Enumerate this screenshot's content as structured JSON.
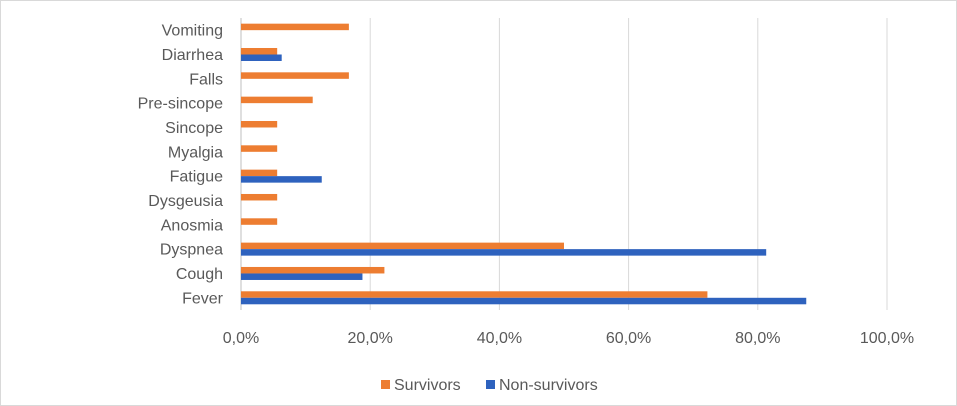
{
  "chart_data": {
    "type": "bar",
    "orientation": "horizontal",
    "title": "",
    "xlabel": "",
    "ylabel": "",
    "xlim": [
      0,
      100
    ],
    "xticks": [
      "0,0%",
      "20,0%",
      "40,0%",
      "60,0%",
      "80,0%",
      "100,0%"
    ],
    "grid": true,
    "legend_position": "bottom",
    "categories": [
      "Vomiting",
      "Diarrhea",
      "Falls",
      "Pre-sincope",
      "Sincope",
      "Myalgia",
      "Fatigue",
      "Dysgeusia",
      "Anosmia",
      "Dyspnea",
      "Cough",
      "Fever"
    ],
    "series": [
      {
        "name": "Survivors",
        "color": "#ed7d31",
        "values": [
          16.7,
          5.6,
          16.7,
          11.1,
          5.6,
          5.6,
          5.6,
          5.6,
          5.6,
          50.0,
          22.2,
          72.2
        ]
      },
      {
        "name": "Non-survivors",
        "color": "#2e62be",
        "values": [
          0,
          6.3,
          0,
          0,
          0,
          0,
          12.5,
          0,
          0,
          81.3,
          18.8,
          87.5
        ]
      }
    ]
  }
}
